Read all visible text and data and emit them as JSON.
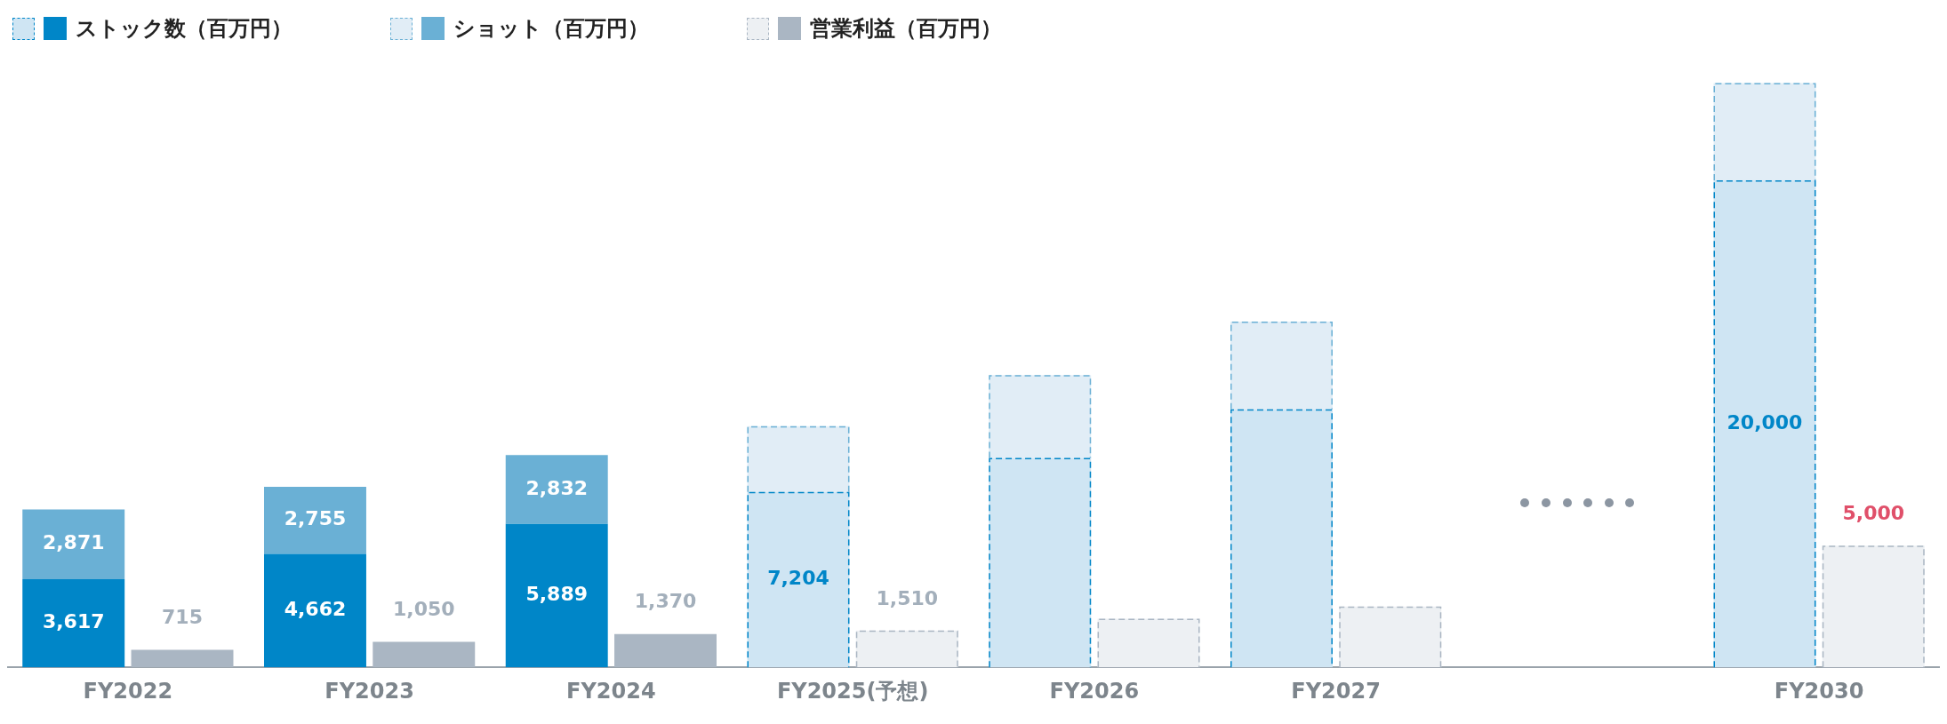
{
  "chart_data": {
    "type": "bar",
    "stacked": true,
    "legend": "top left",
    "categories": [
      "FY2022",
      "FY2023",
      "FY2024",
      "FY2025(予想)",
      "FY2026",
      "FY2027",
      null,
      "FY2030"
    ],
    "series": [
      {
        "name": "ストック数（百万円）",
        "color": "#0086c8",
        "values": [
          3617,
          4662,
          5889,
          null,
          null,
          null,
          null,
          null
        ],
        "value_labels": [
          "3,617",
          "4,662",
          "5,889",
          null,
          null,
          null,
          null,
          null
        ]
      },
      {
        "color": "#cfe5f3",
        "line_style": "dashed",
        "values": [
          null,
          null,
          null,
          7204,
          8600,
          10600,
          null,
          20000
        ],
        "value_labels": [
          null,
          null,
          null,
          "7,204",
          null,
          null,
          null,
          "20,000"
        ]
      },
      {
        "name": "ショット（百万円）",
        "color": "#6ab0d5",
        "values": [
          2871,
          2755,
          2832,
          null,
          null,
          null,
          null,
          null
        ],
        "value_labels": [
          "2,871",
          "2,755",
          "2,832",
          null,
          null,
          null,
          null,
          null
        ]
      },
      {
        "color": "#e1edf6",
        "line_style": "dashed",
        "values": [
          null,
          null,
          null,
          2700,
          3400,
          3600,
          null,
          4000
        ]
      },
      {
        "name": "営業利益（百万円）",
        "color": "#aab6c3",
        "axis": "y2",
        "values": [
          715,
          1050,
          1370,
          null,
          null,
          null,
          null,
          null
        ],
        "value_labels": [
          "715",
          "1,050",
          "1,370",
          null,
          null,
          null,
          null,
          null
        ]
      },
      {
        "color": "#edf0f3",
        "line_style": "dashed",
        "axis": "y2",
        "values": [
          null,
          null,
          null,
          1510,
          2000,
          2500,
          null,
          5000
        ],
        "value_labels": [
          null,
          null,
          null,
          "1,510",
          null,
          null,
          null,
          "5,000"
        ]
      }
    ]
  }
}
